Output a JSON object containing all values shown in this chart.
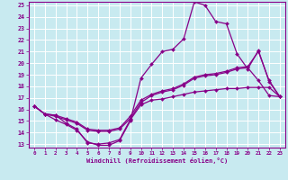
{
  "xlabel": "Windchill (Refroidissement éolien,°C)",
  "background_color": "#c8eaf0",
  "grid_color": "#ffffff",
  "line_color": "#880088",
  "xmin": 0,
  "xmax": 23,
  "ymin": 13,
  "ymax": 25,
  "x_ticks": [
    0,
    1,
    2,
    3,
    4,
    5,
    6,
    7,
    8,
    9,
    10,
    11,
    12,
    13,
    14,
    15,
    16,
    17,
    18,
    19,
    20,
    21,
    22,
    23
  ],
  "y_ticks": [
    13,
    14,
    15,
    16,
    17,
    18,
    19,
    20,
    21,
    22,
    23,
    24,
    25
  ],
  "series": [
    {
      "x": [
        0,
        1,
        2,
        3,
        4,
        5,
        6,
        7,
        8,
        9,
        10,
        11,
        12,
        13,
        14,
        15,
        16,
        17,
        18,
        19,
        20,
        21,
        22,
        23
      ],
      "y": [
        16.3,
        15.6,
        15.5,
        14.8,
        14.3,
        13.1,
        13.0,
        13.1,
        13.4,
        15.1,
        16.4,
        16.8,
        16.9,
        17.1,
        17.3,
        17.5,
        17.6,
        17.7,
        17.8,
        17.8,
        17.9,
        17.9,
        17.9,
        17.1
      ]
    },
    {
      "x": [
        0,
        1,
        2,
        3,
        4,
        5,
        6,
        7,
        8,
        9,
        10,
        11,
        12,
        13,
        14,
        15,
        16,
        17,
        18,
        19,
        20,
        21,
        22,
        23
      ],
      "y": [
        16.3,
        15.6,
        15.1,
        14.7,
        14.2,
        13.2,
        12.9,
        12.9,
        13.3,
        15.0,
        18.7,
        19.9,
        21.0,
        21.2,
        22.1,
        25.3,
        25.0,
        23.6,
        23.4,
        20.8,
        19.5,
        21.1,
        18.4,
        17.1
      ]
    },
    {
      "x": [
        0,
        1,
        2,
        3,
        4,
        5,
        6,
        7,
        8,
        9,
        10,
        11,
        12,
        13,
        14,
        15,
        16,
        17,
        18,
        19,
        20,
        21,
        22,
        23
      ],
      "y": [
        16.3,
        15.6,
        15.4,
        15.1,
        14.8,
        14.2,
        14.1,
        14.1,
        14.3,
        15.2,
        16.6,
        17.2,
        17.5,
        17.7,
        18.1,
        18.7,
        18.9,
        19.0,
        19.2,
        19.5,
        19.6,
        18.5,
        17.2,
        17.1
      ]
    },
    {
      "x": [
        0,
        1,
        2,
        3,
        4,
        5,
        6,
        7,
        8,
        9,
        10,
        11,
        12,
        13,
        14,
        15,
        16,
        17,
        18,
        19,
        20,
        21,
        22,
        23
      ],
      "y": [
        16.3,
        15.6,
        15.5,
        15.2,
        14.9,
        14.3,
        14.2,
        14.2,
        14.4,
        15.4,
        16.8,
        17.3,
        17.6,
        17.8,
        18.2,
        18.8,
        19.0,
        19.1,
        19.3,
        19.6,
        19.7,
        21.0,
        18.5,
        17.1
      ]
    }
  ]
}
